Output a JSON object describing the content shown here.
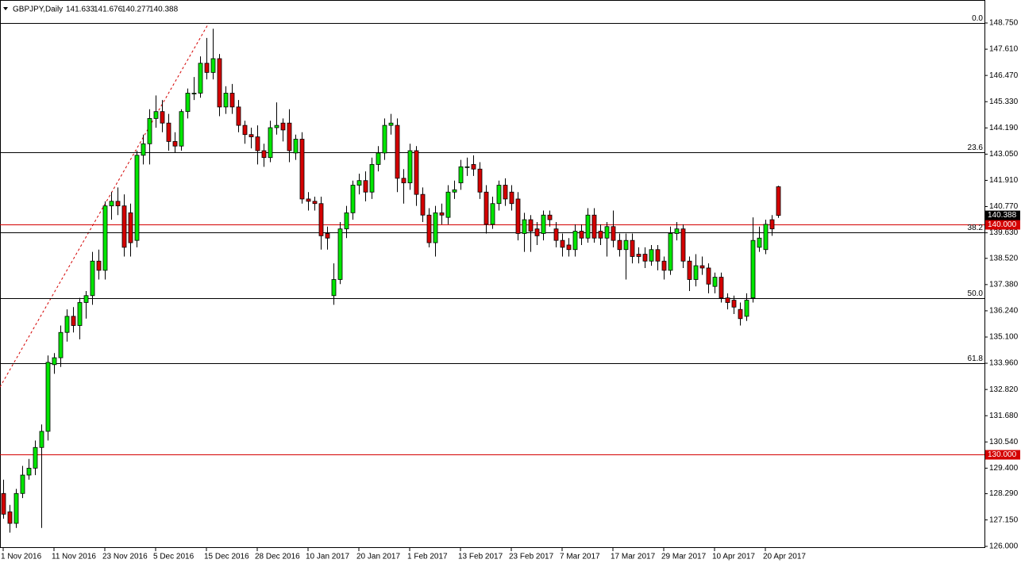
{
  "chart_data": {
    "type": "candlestick",
    "symbol": "GBPJPY,Daily",
    "up_color": "#00e600",
    "down_color": "#d40000",
    "ylim": [
      126.0,
      148.75
    ],
    "yticks": [
      {
        "value": 148.75,
        "label": "148.750"
      },
      {
        "value": 147.61,
        "label": "147.610"
      },
      {
        "value": 146.47,
        "label": "146.470"
      },
      {
        "value": 145.33,
        "label": "145.330"
      },
      {
        "value": 144.19,
        "label": "144.190"
      },
      {
        "value": 143.05,
        "label": "143.050"
      },
      {
        "value": 141.91,
        "label": "141.910"
      },
      {
        "value": 140.77,
        "label": "140.770"
      },
      {
        "value": 139.63,
        "label": "139.630"
      },
      {
        "value": 138.52,
        "label": "138.520"
      },
      {
        "value": 137.38,
        "label": "137.380"
      },
      {
        "value": 136.24,
        "label": "136.240"
      },
      {
        "value": 135.1,
        "label": "135.100"
      },
      {
        "value": 133.96,
        "label": "133.960"
      },
      {
        "value": 132.82,
        "label": "132.820"
      },
      {
        "value": 131.68,
        "label": "131.680"
      },
      {
        "value": 130.54,
        "label": "130.540"
      },
      {
        "value": 129.4,
        "label": "129.400"
      },
      {
        "value": 128.29,
        "label": "128.290"
      },
      {
        "value": 127.15,
        "label": "127.150"
      },
      {
        "value": 126.0,
        "label": "126.000"
      }
    ],
    "fib_levels": [
      {
        "level": "0.0",
        "price": 148.75
      },
      {
        "level": "23.6",
        "price": 143.13
      },
      {
        "level": "38.2",
        "price": 139.65
      },
      {
        "level": "50.0",
        "price": 136.79
      },
      {
        "level": "61.8",
        "price": 133.96
      }
    ],
    "price_levels": [
      {
        "value": 140,
        "label": "140.000"
      },
      {
        "value": 130,
        "label": "130.000"
      }
    ],
    "categories": [
      "1 Nov 2016",
      null,
      null,
      null,
      null,
      null,
      null,
      null,
      "11 Nov 2016",
      null,
      null,
      null,
      null,
      null,
      null,
      null,
      "23 Nov 2016",
      null,
      null,
      null,
      null,
      null,
      null,
      null,
      "5 Dec 2016",
      null,
      null,
      null,
      null,
      null,
      null,
      null,
      "15 Dec 2016",
      null,
      null,
      null,
      null,
      null,
      null,
      null,
      "28 Dec 2016",
      null,
      null,
      null,
      null,
      null,
      null,
      null,
      "10 Jan 2017",
      null,
      null,
      null,
      null,
      null,
      null,
      null,
      "20 Jan 2017",
      null,
      null,
      null,
      null,
      null,
      null,
      null,
      "1 Feb 2017",
      null,
      null,
      null,
      null,
      null,
      null,
      null,
      "13 Feb 2017",
      null,
      null,
      null,
      null,
      null,
      null,
      null,
      "23 Feb 2017",
      null,
      null,
      null,
      null,
      null,
      null,
      null,
      "7 Mar 2017",
      null,
      null,
      null,
      null,
      null,
      null,
      null,
      "17 Mar 2017",
      null,
      null,
      null,
      null,
      null,
      null,
      null,
      "29 Mar 2017",
      null,
      null,
      null,
      null,
      null,
      null,
      null,
      "10 Apr 2017",
      null,
      null,
      null,
      null,
      null,
      null,
      null,
      "20 Apr 2017",
      null,
      null
    ],
    "ohlc": [
      [
        128.3,
        128.9,
        127.2,
        127.4
      ],
      [
        127.5,
        127.8,
        126.6,
        127.0
      ],
      [
        127.0,
        128.5,
        126.8,
        128.3
      ],
      [
        128.3,
        129.5,
        128.1,
        129.1
      ],
      [
        129.1,
        129.8,
        128.9,
        129.4
      ],
      [
        129.4,
        130.6,
        129.1,
        130.3
      ],
      [
        130.3,
        131.3,
        126.8,
        131.0
      ],
      [
        131.0,
        134.3,
        130.6,
        134.0
      ],
      [
        133.9,
        134.4,
        133.5,
        134.2
      ],
      [
        134.2,
        135.6,
        133.8,
        135.3
      ],
      [
        135.3,
        136.3,
        134.9,
        136.0
      ],
      [
        136.0,
        136.4,
        135.3,
        135.6
      ],
      [
        135.6,
        136.8,
        135.0,
        136.6
      ],
      [
        136.6,
        137.1,
        135.9,
        136.9
      ],
      [
        136.9,
        138.8,
        136.5,
        138.4
      ],
      [
        138.4,
        138.9,
        137.6,
        138.0
      ],
      [
        138.0,
        141.0,
        137.6,
        140.8
      ],
      [
        140.8,
        141.4,
        140.2,
        141.0
      ],
      [
        141.0,
        141.6,
        140.4,
        140.8
      ],
      [
        140.8,
        141.3,
        138.6,
        139.0
      ],
      [
        140.5,
        140.9,
        138.6,
        139.2
      ],
      [
        139.3,
        143.2,
        139.0,
        143.0
      ],
      [
        143.0,
        143.9,
        142.6,
        143.5
      ],
      [
        143.5,
        145.0,
        142.6,
        144.6
      ],
      [
        144.6,
        145.6,
        144.2,
        144.9
      ],
      [
        144.9,
        145.4,
        144.0,
        144.4
      ],
      [
        144.4,
        144.8,
        143.2,
        143.6
      ],
      [
        143.6,
        144.0,
        143.1,
        143.4
      ],
      [
        143.4,
        145.0,
        143.2,
        144.9
      ],
      [
        144.9,
        145.9,
        144.6,
        145.7
      ],
      [
        145.7,
        146.4,
        145.4,
        145.7
      ],
      [
        145.7,
        147.3,
        145.5,
        147.0
      ],
      [
        147.0,
        148.1,
        146.3,
        146.6
      ],
      [
        146.6,
        148.5,
        146.3,
        147.2
      ],
      [
        147.2,
        147.4,
        144.7,
        145.1
      ],
      [
        145.1,
        146.0,
        144.8,
        145.7
      ],
      [
        145.7,
        146.1,
        144.8,
        145.1
      ],
      [
        145.1,
        145.4,
        144.0,
        144.3
      ],
      [
        144.3,
        144.5,
        143.5,
        143.9
      ],
      [
        143.9,
        144.2,
        143.3,
        143.8
      ],
      [
        143.8,
        144.3,
        142.6,
        143.2
      ],
      [
        143.2,
        143.5,
        142.5,
        142.9
      ],
      [
        142.9,
        144.5,
        142.7,
        144.2
      ],
      [
        144.2,
        145.3,
        143.9,
        144.3
      ],
      [
        144.4,
        144.6,
        143.6,
        144.1
      ],
      [
        144.4,
        145.0,
        142.7,
        143.2
      ],
      [
        143.1,
        143.9,
        142.8,
        143.7
      ],
      [
        143.7,
        144.0,
        140.9,
        141.1
      ],
      [
        141.1,
        141.4,
        140.6,
        141.0
      ],
      [
        141.0,
        141.2,
        140.6,
        140.9
      ],
      [
        140.9,
        141.2,
        138.9,
        139.5
      ],
      [
        139.6,
        139.9,
        138.9,
        139.4
      ],
      [
        136.9,
        138.3,
        136.5,
        137.6
      ],
      [
        137.6,
        140.1,
        137.4,
        139.8
      ],
      [
        139.8,
        140.8,
        139.4,
        140.5
      ],
      [
        140.5,
        141.9,
        140.2,
        141.7
      ],
      [
        141.7,
        142.2,
        141.3,
        141.9
      ],
      [
        141.9,
        142.3,
        141.0,
        141.4
      ],
      [
        141.4,
        142.9,
        141.1,
        142.6
      ],
      [
        142.6,
        143.4,
        142.3,
        143.1
      ],
      [
        143.1,
        144.6,
        142.8,
        144.3
      ],
      [
        144.3,
        144.8,
        143.9,
        144.4
      ],
      [
        144.3,
        144.6,
        141.4,
        142.0
      ],
      [
        142.0,
        142.4,
        140.9,
        141.8
      ],
      [
        141.8,
        143.5,
        141.5,
        143.2
      ],
      [
        143.2,
        143.4,
        140.8,
        141.3
      ],
      [
        141.3,
        141.6,
        140.1,
        140.4
      ],
      [
        140.4,
        140.7,
        139.0,
        139.2
      ],
      [
        139.2,
        140.8,
        138.6,
        140.5
      ],
      [
        140.5,
        140.9,
        140.0,
        140.4
      ],
      [
        140.3,
        141.7,
        140.0,
        141.4
      ],
      [
        141.4,
        141.9,
        141.1,
        141.5
      ],
      [
        141.8,
        142.8,
        141.5,
        142.5
      ],
      [
        142.5,
        142.9,
        142.1,
        142.5
      ],
      [
        142.6,
        143.0,
        142.1,
        142.4
      ],
      [
        142.4,
        142.7,
        141.1,
        141.4
      ],
      [
        141.4,
        141.7,
        139.6,
        140.0
      ],
      [
        140.0,
        141.2,
        139.8,
        140.9
      ],
      [
        140.9,
        141.9,
        140.6,
        141.7
      ],
      [
        141.7,
        142.0,
        140.8,
        141.1
      ],
      [
        141.4,
        141.7,
        140.6,
        140.9
      ],
      [
        141.1,
        141.4,
        139.3,
        139.6
      ],
      [
        139.6,
        140.5,
        138.8,
        140.2
      ],
      [
        140.2,
        140.4,
        138.8,
        139.7
      ],
      [
        139.8,
        140.1,
        139.1,
        139.5
      ],
      [
        139.6,
        140.6,
        139.3,
        140.4
      ],
      [
        140.4,
        140.6,
        139.9,
        140.2
      ],
      [
        139.8,
        140.1,
        139.0,
        139.3
      ],
      [
        139.3,
        139.6,
        138.6,
        139.0
      ],
      [
        139.1,
        139.4,
        138.6,
        138.9
      ],
      [
        138.9,
        140.0,
        138.6,
        139.7
      ],
      [
        139.7,
        140.0,
        139.1,
        139.4
      ],
      [
        139.4,
        140.7,
        139.2,
        140.4
      ],
      [
        140.4,
        140.7,
        139.2,
        139.4
      ],
      [
        139.7,
        140.0,
        139.1,
        139.4
      ],
      [
        139.4,
        140.1,
        138.6,
        139.9
      ],
      [
        139.9,
        140.6,
        139.0,
        139.3
      ],
      [
        139.3,
        139.6,
        138.6,
        138.9
      ],
      [
        138.9,
        139.6,
        137.6,
        139.3
      ],
      [
        139.3,
        139.6,
        138.3,
        138.6
      ],
      [
        138.7,
        139.0,
        138.3,
        138.6
      ],
      [
        138.7,
        139.0,
        138.1,
        138.4
      ],
      [
        138.4,
        139.1,
        138.2,
        138.9
      ],
      [
        138.9,
        139.1,
        138.0,
        138.4
      ],
      [
        138.4,
        138.6,
        137.6,
        138.0
      ],
      [
        138.0,
        139.9,
        137.8,
        139.6
      ],
      [
        139.6,
        140.1,
        139.3,
        139.8
      ],
      [
        139.8,
        140.0,
        138.1,
        138.4
      ],
      [
        138.4,
        138.6,
        137.1,
        137.6
      ],
      [
        137.6,
        138.7,
        137.3,
        138.2
      ],
      [
        138.2,
        138.6,
        137.8,
        138.1
      ],
      [
        138.1,
        138.3,
        137.0,
        137.4
      ],
      [
        137.3,
        137.9,
        137.0,
        137.7
      ],
      [
        137.7,
        137.9,
        136.6,
        136.8
      ],
      [
        136.8,
        137.0,
        136.3,
        136.6
      ],
      [
        136.7,
        136.9,
        136.1,
        136.4
      ],
      [
        136.3,
        136.6,
        135.6,
        135.9
      ],
      [
        136.0,
        137.0,
        135.8,
        136.7
      ],
      [
        136.8,
        140.3,
        136.6,
        139.3
      ],
      [
        139.0,
        139.9,
        138.8,
        139.4
      ],
      [
        138.9,
        140.2,
        138.7,
        140.0
      ],
      [
        140.2,
        140.4,
        139.5,
        139.8
      ],
      [
        141.633,
        141.676,
        140.277,
        140.388
      ]
    ]
  }
}
